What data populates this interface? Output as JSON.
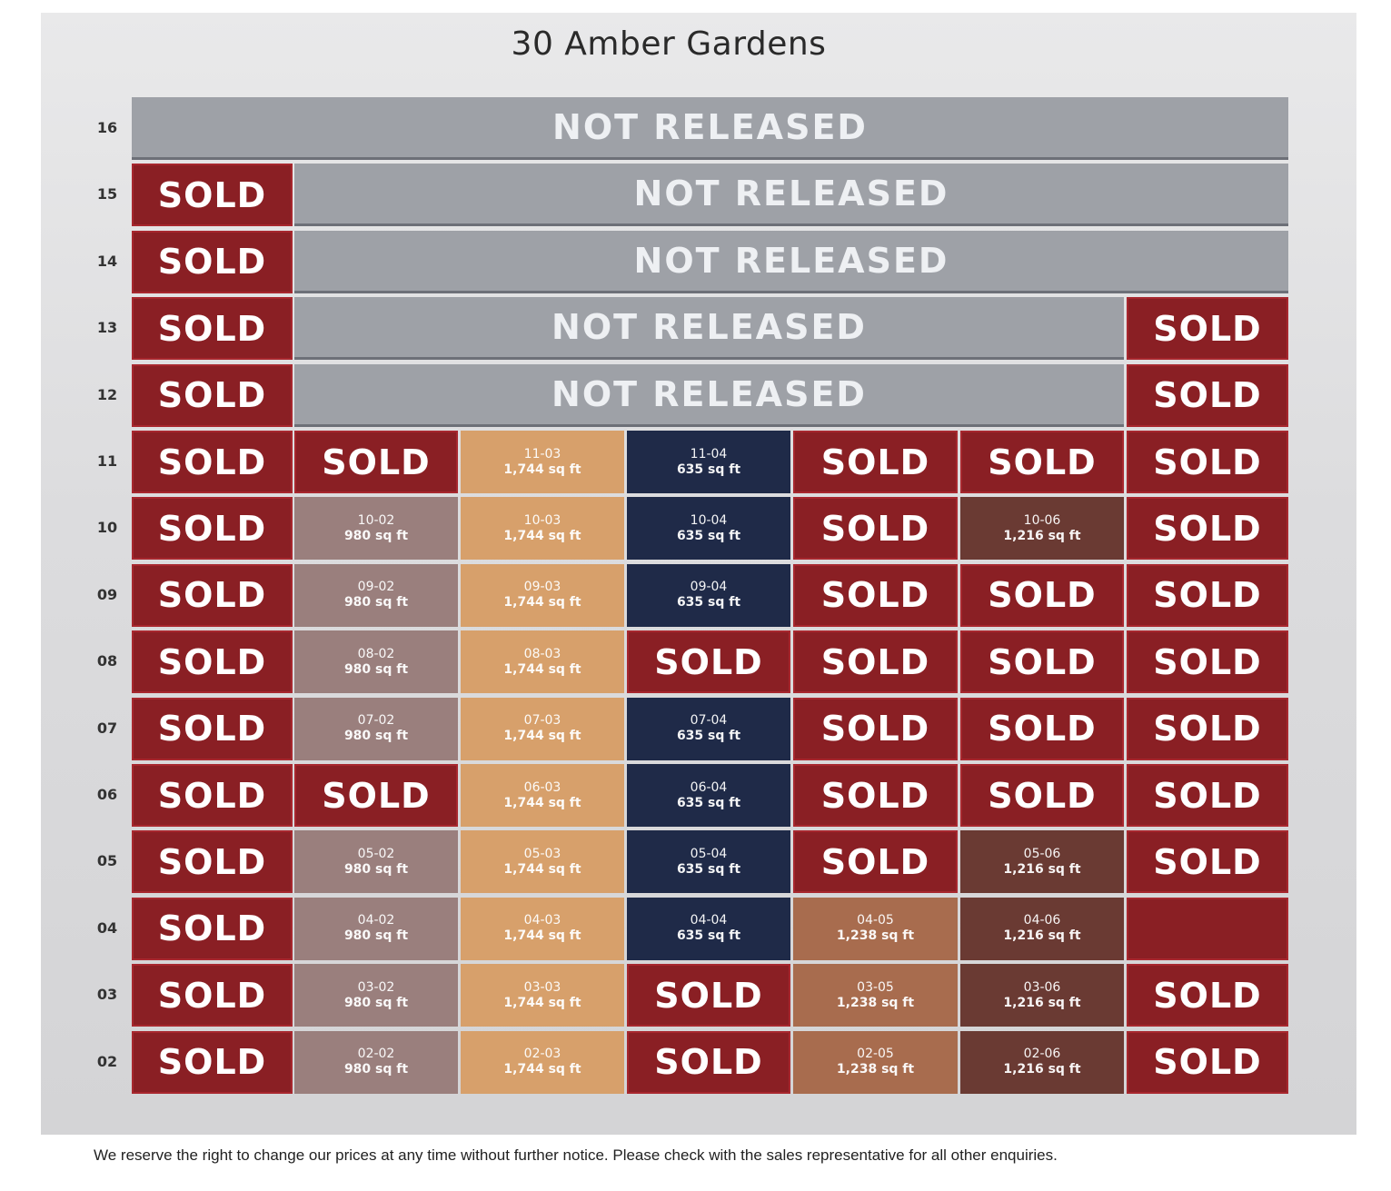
{
  "title": "30 Amber Gardens",
  "colors": {
    "sold": "#8a1f24",
    "not_released": "#9ea1a7",
    "stack_02": "#9a7f7d",
    "stack_03": "#d7a06b",
    "stack_04": "#1f2a48",
    "stack_05": "#a86c4e",
    "stack_06": "#6a3a33"
  },
  "sold_label": "SOLD",
  "not_released_label": "NOT RELEASED",
  "floors": [
    "16",
    "15",
    "14",
    "13",
    "12",
    "11",
    "10",
    "09",
    "08",
    "07",
    "06",
    "05",
    "04",
    "03",
    "02"
  ],
  "not_released_rows": [
    {
      "floor": "16",
      "from_col": 0,
      "to_col": 6
    },
    {
      "floor": "15",
      "from_col": 1,
      "to_col": 6
    },
    {
      "floor": "14",
      "from_col": 1,
      "to_col": 6
    },
    {
      "floor": "13",
      "from_col": 1,
      "to_col": 5
    },
    {
      "floor": "12",
      "from_col": 1,
      "to_col": 5
    }
  ],
  "rows": [
    {
      "floor": "16",
      "cells": [
        "nr",
        "nr",
        "nr",
        "nr",
        "nr",
        "nr",
        "nr"
      ]
    },
    {
      "floor": "15",
      "cells": [
        "sold",
        "nr",
        "nr",
        "nr",
        "nr",
        "nr",
        "nr"
      ]
    },
    {
      "floor": "14",
      "cells": [
        "sold",
        "nr",
        "nr",
        "nr",
        "nr",
        "nr",
        "nr"
      ]
    },
    {
      "floor": "13",
      "cells": [
        "sold",
        "nr",
        "nr",
        "nr",
        "nr",
        "nr",
        "sold"
      ]
    },
    {
      "floor": "12",
      "cells": [
        "sold",
        "nr",
        "nr",
        "nr",
        "nr",
        "nr",
        "sold"
      ]
    },
    {
      "floor": "11",
      "cells": [
        "sold",
        "sold",
        {
          "unit": "11-03",
          "area": "1,744 sq ft"
        },
        {
          "unit": "11-04",
          "area": "635 sq ft"
        },
        "sold",
        "sold",
        "sold"
      ]
    },
    {
      "floor": "10",
      "cells": [
        "sold",
        {
          "unit": "10-02",
          "area": "980 sq ft"
        },
        {
          "unit": "10-03",
          "area": "1,744 sq ft"
        },
        {
          "unit": "10-04",
          "area": "635 sq ft"
        },
        "sold",
        {
          "unit": "10-06",
          "area": "1,216 sq ft"
        },
        "sold"
      ]
    },
    {
      "floor": "09",
      "cells": [
        "sold",
        {
          "unit": "09-02",
          "area": "980 sq ft"
        },
        {
          "unit": "09-03",
          "area": "1,744 sq ft"
        },
        {
          "unit": "09-04",
          "area": "635 sq ft"
        },
        "sold",
        "sold",
        "sold"
      ]
    },
    {
      "floor": "08",
      "cells": [
        "sold",
        {
          "unit": "08-02",
          "area": "980 sq ft"
        },
        {
          "unit": "08-03",
          "area": "1,744 sq ft"
        },
        "sold",
        "sold",
        "sold",
        "sold"
      ]
    },
    {
      "floor": "07",
      "cells": [
        "sold",
        {
          "unit": "07-02",
          "area": "980 sq ft"
        },
        {
          "unit": "07-03",
          "area": "1,744 sq ft"
        },
        {
          "unit": "07-04",
          "area": "635 sq ft"
        },
        "sold",
        "sold",
        "sold"
      ]
    },
    {
      "floor": "06",
      "cells": [
        "sold",
        "sold",
        {
          "unit": "06-03",
          "area": "1,744 sq ft"
        },
        {
          "unit": "06-04",
          "area": "635 sq ft"
        },
        "sold",
        "sold",
        "sold"
      ]
    },
    {
      "floor": "05",
      "cells": [
        "sold",
        {
          "unit": "05-02",
          "area": "980 sq ft"
        },
        {
          "unit": "05-03",
          "area": "1,744 sq ft"
        },
        {
          "unit": "05-04",
          "area": "635 sq ft"
        },
        "sold",
        {
          "unit": "05-06",
          "area": "1,216 sq ft"
        },
        "sold"
      ]
    },
    {
      "floor": "04",
      "cells": [
        "sold",
        {
          "unit": "04-02",
          "area": "980 sq ft"
        },
        {
          "unit": "04-03",
          "area": "1,744 sq ft"
        },
        {
          "unit": "04-04",
          "area": "635 sq ft"
        },
        {
          "unit": "04-05",
          "area": "1,238 sq ft"
        },
        {
          "unit": "04-06",
          "area": "1,216 sq ft"
        },
        "blank-sold"
      ]
    },
    {
      "floor": "03",
      "cells": [
        "sold",
        {
          "unit": "03-02",
          "area": "980 sq ft"
        },
        {
          "unit": "03-03",
          "area": "1,744 sq ft"
        },
        "sold",
        {
          "unit": "03-05",
          "area": "1,238 sq ft"
        },
        {
          "unit": "03-06",
          "area": "1,216 sq ft"
        },
        "sold"
      ]
    },
    {
      "floor": "02",
      "cells": [
        "sold",
        {
          "unit": "02-02",
          "area": "980 sq ft"
        },
        {
          "unit": "02-03",
          "area": "1,744 sq ft"
        },
        "sold",
        {
          "unit": "02-05",
          "area": "1,238 sq ft"
        },
        {
          "unit": "02-06",
          "area": "1,216 sq ft"
        },
        "sold"
      ]
    }
  ],
  "disclaimer": "We reserve the right to change our prices at any time without further notice. Please check with the sales representative for all other enquiries."
}
